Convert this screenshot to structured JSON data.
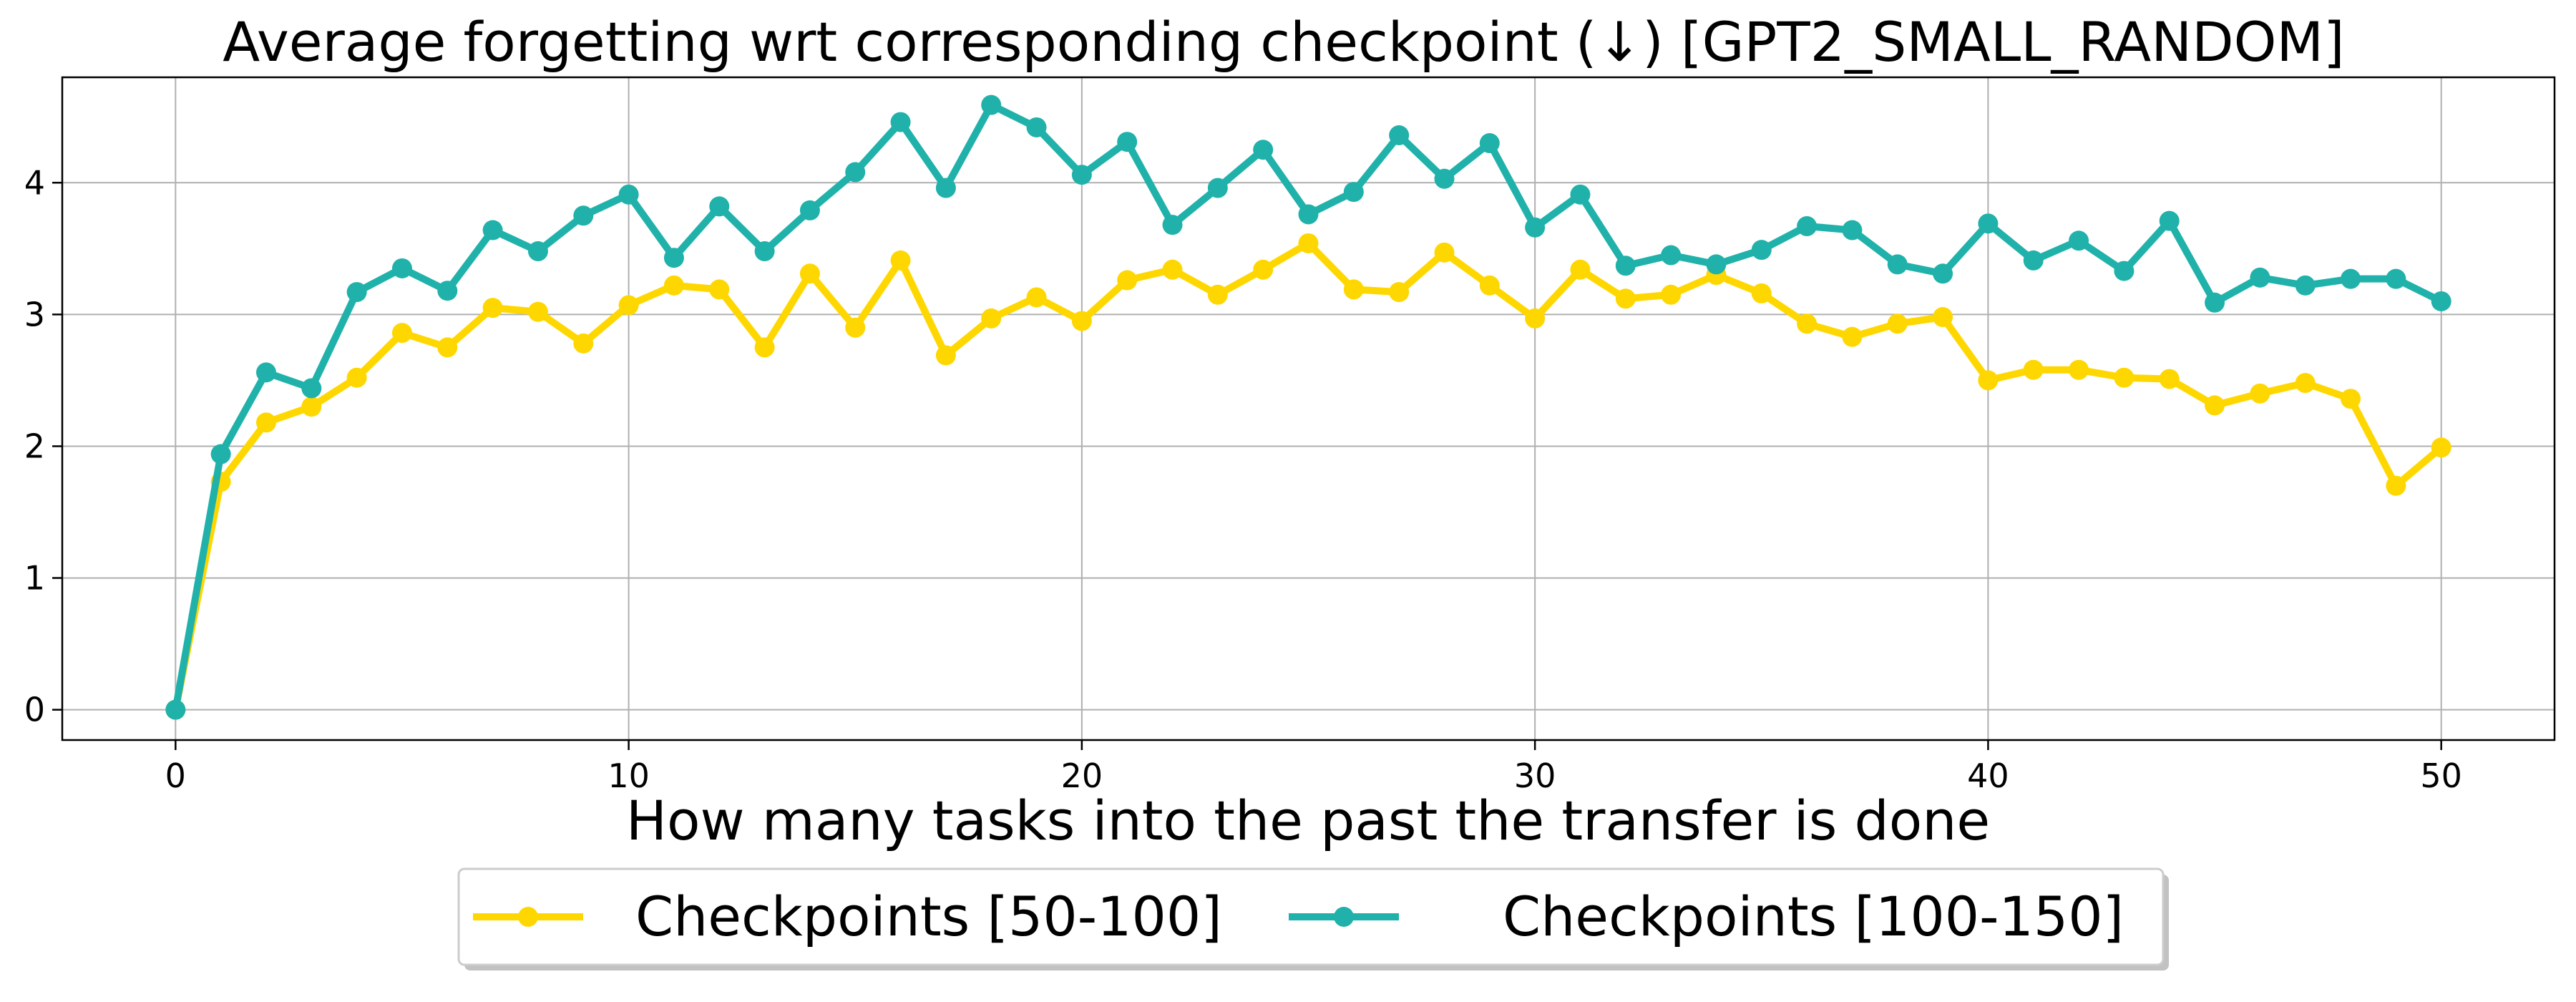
{
  "chart_data": {
    "type": "line",
    "title": "Average forgetting wrt corresponding checkpoint (↓) [GPT2_SMALL_RANDOM]",
    "xlabel": "How many tasks into the past the transfer is done",
    "ylabel": "",
    "xlim": [
      -2.5,
      52.5
    ],
    "ylim": [
      -0.23,
      4.8
    ],
    "xticks": [
      0,
      10,
      20,
      30,
      40,
      50
    ],
    "yticks": [
      0,
      1,
      2,
      3,
      4
    ],
    "grid": true,
    "legend_position": "bottom-center",
    "x": [
      0,
      1,
      2,
      3,
      4,
      5,
      6,
      7,
      8,
      9,
      10,
      11,
      12,
      13,
      14,
      15,
      16,
      17,
      18,
      19,
      20,
      21,
      22,
      23,
      24,
      25,
      26,
      27,
      28,
      29,
      30,
      31,
      32,
      33,
      34,
      35,
      36,
      37,
      38,
      39,
      40,
      41,
      42,
      43,
      44,
      45,
      46,
      47,
      48,
      49,
      50
    ],
    "series": [
      {
        "name": "Checkpoints [50-100]",
        "color": "#FFD700",
        "values": [
          0,
          1.73,
          2.18,
          2.3,
          2.52,
          2.86,
          2.75,
          3.05,
          3.02,
          2.78,
          3.07,
          3.22,
          3.19,
          2.75,
          3.31,
          2.9,
          3.41,
          2.69,
          2.97,
          3.13,
          2.95,
          3.26,
          3.34,
          3.15,
          3.34,
          3.54,
          3.19,
          3.17,
          3.47,
          3.22,
          2.97,
          3.34,
          3.12,
          3.15,
          3.3,
          3.16,
          2.93,
          2.83,
          2.93,
          2.98,
          2.5,
          2.58,
          2.58,
          2.52,
          2.51,
          2.31,
          2.4,
          2.48,
          2.36,
          1.7,
          1.99
        ]
      },
      {
        "name": "Checkpoints [100-150]",
        "color": "#20B2AA",
        "values": [
          0,
          1.94,
          2.56,
          2.44,
          3.17,
          3.35,
          3.18,
          3.64,
          3.48,
          3.75,
          3.91,
          3.43,
          3.82,
          3.48,
          3.79,
          4.08,
          4.46,
          3.96,
          4.59,
          4.42,
          4.06,
          4.31,
          3.68,
          3.96,
          4.25,
          3.76,
          3.93,
          4.36,
          4.03,
          4.3,
          3.66,
          3.91,
          3.37,
          3.45,
          3.38,
          3.49,
          3.67,
          3.64,
          3.38,
          3.31,
          3.69,
          3.41,
          3.56,
          3.33,
          3.71,
          3.09,
          3.28,
          3.22,
          3.27,
          3.27,
          3.1
        ]
      }
    ]
  }
}
